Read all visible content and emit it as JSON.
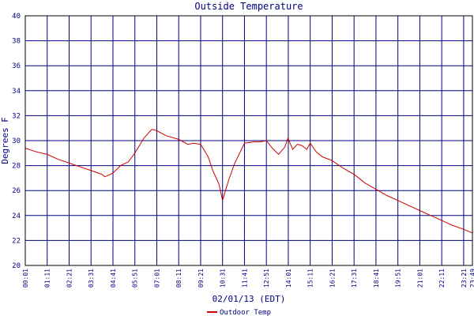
{
  "chart_data": {
    "type": "line",
    "title": "Outside Temperature",
    "xlabel": "02/01/13 (EDT)",
    "ylabel": "Degrees F",
    "ylim": [
      20,
      40
    ],
    "yticks": [
      20,
      22,
      24,
      26,
      28,
      30,
      32,
      34,
      36,
      38,
      40
    ],
    "xticks": [
      "00:01",
      "01:11",
      "02:21",
      "03:31",
      "04:41",
      "05:51",
      "07:01",
      "08:11",
      "09:21",
      "10:31",
      "11:41",
      "12:51",
      "14:01",
      "15:11",
      "16:21",
      "17:31",
      "18:41",
      "19:51",
      "21:01",
      "22:11",
      "23:21",
      "23:49"
    ],
    "x_minutes_first_tick": 1,
    "x_minutes_last_tick": 1429,
    "grid": true,
    "colors": {
      "background": "#ffffff",
      "grid": "#000080",
      "axis": "#000000",
      "series": "#cc0000",
      "text": "#000080"
    },
    "series": [
      {
        "name": "Outdoor Temp",
        "x": [
          "00:01",
          "00:36",
          "01:11",
          "01:46",
          "02:21",
          "02:56",
          "03:31",
          "04:06",
          "04:15",
          "04:41",
          "05:05",
          "05:30",
          "05:51",
          "06:20",
          "06:45",
          "07:01",
          "07:30",
          "08:11",
          "08:40",
          "09:00",
          "09:21",
          "09:45",
          "10:00",
          "10:20",
          "10:31",
          "10:50",
          "11:10",
          "11:41",
          "12:10",
          "12:30",
          "12:51",
          "13:10",
          "13:30",
          "13:50",
          "14:00",
          "14:15",
          "14:30",
          "14:45",
          "15:00",
          "15:11",
          "15:30",
          "15:50",
          "16:21",
          "16:56",
          "17:31",
          "18:06",
          "18:41",
          "19:16",
          "19:51",
          "20:26",
          "21:01",
          "21:36",
          "22:11",
          "22:46",
          "23:21",
          "23:49"
        ],
        "y": [
          29.4,
          29.1,
          28.9,
          28.5,
          28.2,
          27.9,
          27.6,
          27.3,
          27.1,
          27.4,
          28.0,
          28.3,
          29.0,
          30.2,
          30.9,
          30.8,
          30.4,
          30.1,
          29.7,
          29.8,
          29.7,
          28.7,
          27.6,
          26.5,
          25.2,
          26.8,
          28.2,
          29.8,
          29.9,
          29.9,
          30.0,
          29.4,
          28.9,
          29.5,
          30.2,
          29.3,
          29.7,
          29.6,
          29.3,
          29.8,
          29.1,
          28.7,
          28.4,
          27.8,
          27.3,
          26.6,
          26.1,
          25.6,
          25.2,
          24.8,
          24.4,
          24.0,
          23.6,
          23.2,
          22.9,
          22.6
        ]
      }
    ]
  }
}
